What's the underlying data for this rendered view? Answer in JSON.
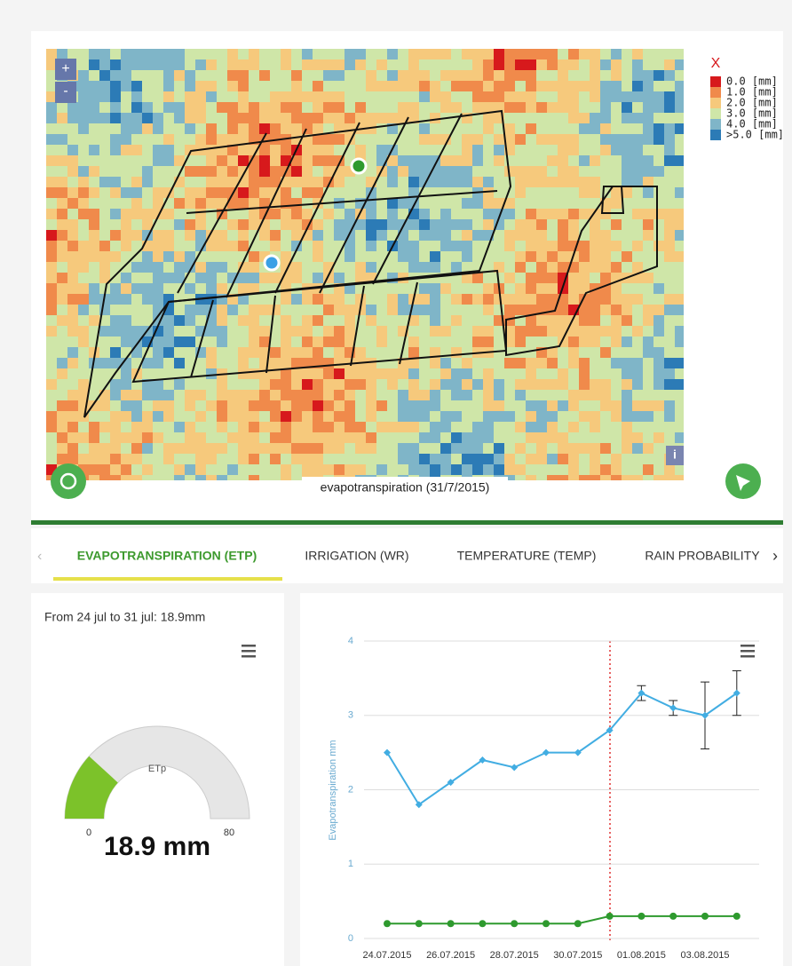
{
  "map": {
    "caption": "evapotranspiration (31/7/2015)",
    "legend": [
      "0.0 [mm]",
      "1.0 [mm]",
      "2.0 [mm]",
      "3.0 [mm]",
      "4.0 [mm]",
      ">5.0 [mm]"
    ],
    "legend_colors": [
      "#d7191c",
      "#f08a4b",
      "#f6c97c",
      "#cfe6a8",
      "#7fb5c8",
      "#2c7bb6"
    ],
    "close": "X",
    "zoom_in": "+",
    "zoom_out": "-",
    "info": "i"
  },
  "tabs": [
    "EVAPOTRANSPIRATION (ETP)",
    "IRRIGATION (WR)",
    "TEMPERATURE (TEMP)",
    "RAIN PROBABILITY"
  ],
  "chart_data": [
    {
      "type": "gauge",
      "title": "From 24 jul to 31 jul: 18.9mm",
      "label": "ETp",
      "value": 18.9,
      "value_labels": "18.9 mm",
      "min": 0,
      "max": 80,
      "color": "#7cc22a",
      "track_color": "#e6e6e6"
    },
    {
      "type": "line",
      "y_label": "Evapotranspiration mm",
      "categories": [
        "24.07.2015",
        null,
        "26.07.2015",
        null,
        "28.07.2015",
        null,
        "30.07.2015",
        null,
        "01.08.2015",
        null,
        "03.08.2015",
        null
      ],
      "series": [
        {
          "color": "#42ade2",
          "values": [
            2.5,
            1.8,
            2.1,
            2.4,
            2.3,
            2.5,
            2.5,
            2.8,
            3.3,
            3.1,
            3.0,
            3.3
          ],
          "errors": [
            null,
            null,
            null,
            null,
            null,
            null,
            null,
            null,
            0.1,
            0.1,
            0.45,
            0.3
          ]
        },
        {
          "color": "#2e9a2e",
          "values": [
            0.2,
            0.2,
            0.2,
            0.2,
            0.2,
            0.2,
            0.2,
            0.3,
            0.3,
            0.3,
            0.3,
            0.3
          ]
        }
      ],
      "ylim": [
        0,
        4
      ],
      "yticks": [
        0,
        1,
        2,
        3,
        4
      ],
      "grid": true
    }
  ]
}
